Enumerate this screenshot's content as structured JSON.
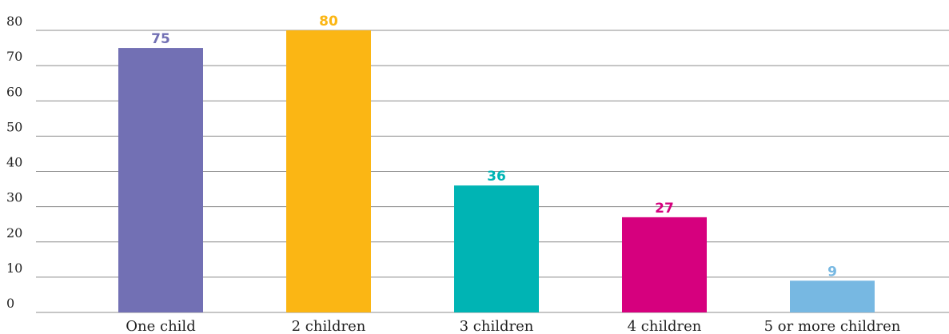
{
  "chart_data": {
    "type": "bar",
    "categories": [
      "One child",
      "2 children",
      "3 children",
      "4 children",
      "5 or more children"
    ],
    "values": [
      75,
      80,
      36,
      27,
      9
    ],
    "data_labels": [
      "75",
      "80",
      "36",
      "27",
      "9"
    ],
    "colors": [
      "#7270b4",
      "#fbb614",
      "#00b4b4",
      "#d6007e",
      "#77b8e2"
    ],
    "yticks": [
      "0",
      "10",
      "20",
      "30",
      "40",
      "50",
      "60",
      "70",
      "80"
    ],
    "ylim": [
      0,
      80
    ],
    "grid": true,
    "legend": "none"
  }
}
